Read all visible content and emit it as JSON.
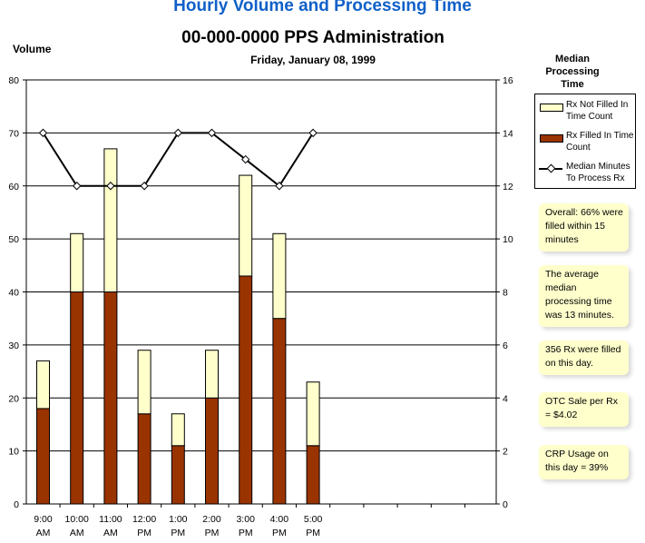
{
  "chart_data": {
    "type": "bar",
    "title": "Hourly Volume and Processing Time",
    "subtitle": "00-000-0000 PPS Administration",
    "date": "Friday, January 08, 1999",
    "ylabel": "Volume",
    "y2label": "Median Processing Time",
    "ylim": [
      0,
      80
    ],
    "y2lim": [
      0,
      16
    ],
    "yticks": [
      "0",
      "10",
      "20",
      "30",
      "40",
      "50",
      "60",
      "70",
      "80"
    ],
    "y2ticks": [
      "0",
      "2",
      "4",
      "6",
      "8",
      "10",
      "12",
      "14",
      "16"
    ],
    "categories": [
      {
        "time": "9:00",
        "ampm": "AM"
      },
      {
        "time": "10:00",
        "ampm": "AM"
      },
      {
        "time": "11:00",
        "ampm": "AM"
      },
      {
        "time": "12:00",
        "ampm": "PM"
      },
      {
        "time": "1:00",
        "ampm": "PM"
      },
      {
        "time": "2:00",
        "ampm": "PM"
      },
      {
        "time": "3:00",
        "ampm": "PM"
      },
      {
        "time": "4:00",
        "ampm": "PM"
      },
      {
        "time": "5:00",
        "ampm": "PM"
      }
    ],
    "series": [
      {
        "name": "Rx Filled In Time Count",
        "type": "bar",
        "color": "#993300",
        "values": [
          18,
          40,
          40,
          17,
          11,
          20,
          43,
          35,
          11
        ]
      },
      {
        "name": "Rx Not Filled In Time Count",
        "type": "bar",
        "color": "#ffffcc",
        "values": [
          9,
          11,
          27,
          12,
          6,
          9,
          19,
          16,
          12
        ]
      },
      {
        "name": "Median Minutes To Process Rx",
        "type": "line",
        "axis": "right",
        "color": "#000000",
        "values": [
          14,
          12,
          12,
          12,
          14,
          14,
          13,
          12,
          14
        ]
      }
    ],
    "legend": [
      "Rx Not Filled In Time Count",
      "Rx Filled In Time Count",
      "Median Minutes To Process Rx"
    ],
    "grid": true,
    "legend_position": "right"
  },
  "notes": [
    "Overall:  66% were filled within 15 minutes",
    "The average median processing time was 13 minutes.",
    "356 Rx were filled on this day.",
    "OTC Sale per Rx = $4.02",
    "CRP Usage on this day = 39%"
  ]
}
